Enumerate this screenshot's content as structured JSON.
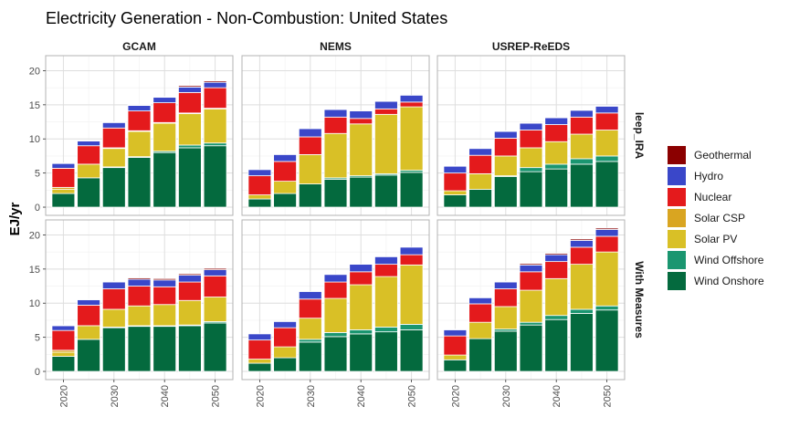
{
  "chart_data": {
    "type": "bar",
    "stacked": true,
    "title": "Electricity Generation - Non-Combustion: United States",
    "ylabel": "EJ/yr",
    "xlabel": "",
    "ylim": [
      -1.2,
      22.2
    ],
    "yticks": [
      0,
      5,
      10,
      15,
      20
    ],
    "x": [
      2020,
      2025,
      2030,
      2035,
      2040,
      2045,
      2050
    ],
    "xticks": [
      "2020",
      "2030",
      "2040",
      "2050"
    ],
    "grid": true,
    "legend_position": "right",
    "columns": [
      "GCAM",
      "NEMS",
      "USREP-ReEDS"
    ],
    "rows": [
      "leep_IRA",
      "With Measures"
    ],
    "series_order": [
      "Wind Onshore",
      "Wind Offshore",
      "Solar PV",
      "Solar CSP",
      "Nuclear",
      "Hydro",
      "Geothermal"
    ],
    "legend": [
      {
        "name": "Geothermal",
        "color": "#8B0000"
      },
      {
        "name": "Hydro",
        "color": "#3A47C9"
      },
      {
        "name": "Nuclear",
        "color": "#E41A1C"
      },
      {
        "name": "Solar CSP",
        "color": "#D9A521"
      },
      {
        "name": "Solar PV",
        "color": "#D9C026"
      },
      {
        "name": "Wind Offshore",
        "color": "#1A9670"
      },
      {
        "name": "Wind Onshore",
        "color": "#046A3E"
      }
    ],
    "panels": [
      {
        "row": "leep_IRA",
        "col": "GCAM",
        "stacks": [
          [
            2.0,
            0,
            0.6,
            0.3,
            2.8,
            0.7,
            0.1
          ],
          [
            4.3,
            0,
            2.0,
            0,
            2.7,
            0.7,
            0.1
          ],
          [
            5.8,
            0.1,
            2.7,
            0.1,
            2.9,
            0.8,
            0.1
          ],
          [
            7.3,
            0.1,
            3.7,
            0.1,
            2.9,
            0.8,
            0.1
          ],
          [
            8.0,
            0.2,
            4.1,
            0.1,
            2.9,
            0.8,
            0.1
          ],
          [
            8.7,
            0.4,
            4.6,
            0.1,
            3.0,
            0.8,
            0.2
          ],
          [
            9.0,
            0.4,
            5.0,
            0.1,
            3.0,
            0.8,
            0.2
          ]
        ]
      },
      {
        "row": "leep_IRA",
        "col": "NEMS",
        "stacks": [
          [
            1.2,
            0,
            0.6,
            0,
            2.8,
            0.9,
            0
          ],
          [
            2.0,
            0,
            1.8,
            0,
            2.9,
            1.0,
            0
          ],
          [
            3.4,
            0,
            4.3,
            0,
            2.6,
            1.2,
            0
          ],
          [
            4.1,
            0.2,
            6.5,
            0,
            2.4,
            1.1,
            0
          ],
          [
            4.4,
            0.2,
            7.6,
            0,
            0.8,
            1.1,
            0
          ],
          [
            4.7,
            0.2,
            8.7,
            0,
            0.8,
            1.1,
            0
          ],
          [
            5.1,
            0.3,
            9.3,
            0,
            0.7,
            1.0,
            0
          ]
        ]
      },
      {
        "row": "leep_IRA",
        "col": "USREP-ReEDS",
        "stacks": [
          [
            1.8,
            0,
            0.6,
            0,
            2.6,
            1.0,
            0.1
          ],
          [
            2.6,
            0,
            2.3,
            0,
            2.7,
            1.0,
            0.1
          ],
          [
            4.5,
            0.1,
            2.9,
            0,
            2.6,
            1.0,
            0.1
          ],
          [
            5.2,
            0.6,
            2.9,
            0,
            2.6,
            1.0,
            0.1
          ],
          [
            5.6,
            0.7,
            3.3,
            0,
            2.5,
            1.0,
            0.1
          ],
          [
            6.3,
            0.8,
            3.6,
            0,
            2.5,
            1.0,
            0.1
          ],
          [
            6.7,
            0.8,
            3.8,
            0,
            2.5,
            1.0,
            0.1
          ]
        ]
      },
      {
        "row": "With Measures",
        "col": "GCAM",
        "stacks": [
          [
            2.2,
            0,
            0.6,
            0.3,
            2.9,
            0.7,
            0.1
          ],
          [
            4.7,
            0,
            2.0,
            0,
            3.0,
            0.8,
            0.1
          ],
          [
            6.4,
            0.1,
            2.6,
            0,
            3.0,
            1.0,
            0.1
          ],
          [
            6.6,
            0.1,
            2.9,
            0,
            2.9,
            1.0,
            0.2
          ],
          [
            6.6,
            0.1,
            3.1,
            0,
            2.6,
            1.0,
            0.2
          ],
          [
            6.7,
            0.1,
            3.6,
            0,
            2.7,
            1.0,
            0.2
          ],
          [
            7.1,
            0.2,
            3.6,
            0,
            3.1,
            0.9,
            0.2
          ]
        ]
      },
      {
        "row": "With Measures",
        "col": "NEMS",
        "stacks": [
          [
            1.2,
            0,
            0.6,
            0,
            2.8,
            0.9,
            0
          ],
          [
            2.0,
            0,
            1.6,
            0,
            2.8,
            0.9,
            0
          ],
          [
            4.3,
            0.4,
            3.1,
            0,
            2.8,
            1.1,
            0
          ],
          [
            5.1,
            0.6,
            5.0,
            0,
            2.4,
            1.1,
            0
          ],
          [
            5.5,
            0.6,
            6.6,
            0,
            1.9,
            1.1,
            0
          ],
          [
            5.8,
            0.7,
            7.4,
            0,
            1.8,
            1.1,
            0
          ],
          [
            6.1,
            0.8,
            8.7,
            0,
            1.5,
            1.1,
            0
          ]
        ]
      },
      {
        "row": "With Measures",
        "col": "USREP-ReEDS",
        "stacks": [
          [
            1.7,
            0,
            0.7,
            0,
            2.8,
            0.9,
            0.1
          ],
          [
            4.8,
            0,
            2.4,
            0,
            2.7,
            0.9,
            0.1
          ],
          [
            5.9,
            0.3,
            3.3,
            0,
            2.6,
            1.0,
            0.1
          ],
          [
            6.8,
            0.4,
            4.7,
            0,
            2.7,
            1.0,
            0.2
          ],
          [
            7.6,
            0.6,
            5.4,
            0,
            2.5,
            1.0,
            0.2
          ],
          [
            8.5,
            0.6,
            6.6,
            0,
            2.5,
            1.0,
            0.2
          ],
          [
            9.0,
            0.6,
            7.9,
            0,
            2.3,
            1.0,
            0.2
          ]
        ]
      }
    ]
  }
}
